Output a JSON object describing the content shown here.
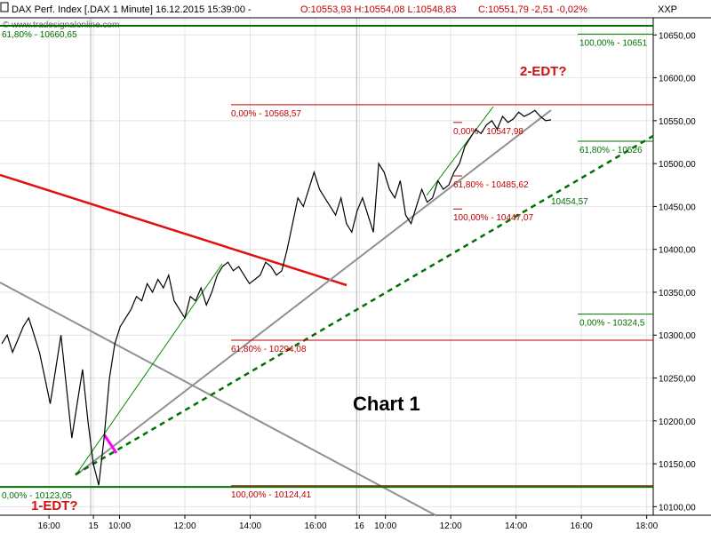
{
  "header": {
    "instrument": "DAX Perf. Index [.DAX  1 Minute] 16.12.2015 15:39:00 -",
    "ohlc": "O:10553,93 H:10554,08 L:10548,83",
    "change": "C:10551,79 -2,51 -0,02%",
    "scale_label": "XXP"
  },
  "watermark": "© www.tradesignalonline.com",
  "colors": {
    "price": "#000000",
    "fib_red": "#c00000",
    "fib_green": "#007000",
    "resistance": "#e01010",
    "channel": "#909090",
    "support_dotted": "#007000",
    "marker": "#ff00ff"
  },
  "chart_data": {
    "type": "line",
    "title": "Chart 1",
    "ylim": [
      10090,
      10670
    ],
    "yticks": [
      "10650,00",
      "10600,00",
      "10550,00",
      "10500,00",
      "10450,00",
      "10400,00",
      "10350,00",
      "10300,00",
      "10250,00",
      "10200,00",
      "10150,00",
      "10100,00"
    ],
    "ytick_values": [
      10650,
      10600,
      10550,
      10500,
      10450,
      10400,
      10350,
      10300,
      10250,
      10200,
      10150,
      10100
    ],
    "xticks": [
      "16:00",
      "15",
      "10:00",
      "12:00",
      "14:00",
      "16:00",
      "16",
      "10:00",
      "12:00",
      "14:00",
      "16:00",
      "18:00"
    ],
    "xtick_index": [
      0.075,
      0.143,
      0.183,
      0.283,
      0.383,
      0.483,
      0.55,
      0.59,
      0.69,
      0.79,
      0.89,
      0.99
    ],
    "series": [
      {
        "values": [
          10290,
          10300,
          10280,
          10295,
          10310,
          10320,
          10300,
          10280,
          10250,
          10220,
          10260,
          10300,
          10240,
          10180,
          10220,
          10260,
          10200,
          10150,
          10125,
          10180,
          10250,
          10290,
          10310,
          10320,
          10330,
          10345,
          10340,
          10360,
          10350,
          10365,
          10355,
          10370,
          10340,
          10330,
          10320,
          10345,
          10340,
          10355,
          10335,
          10350,
          10370,
          10380,
          10385,
          10375,
          10380,
          10370,
          10360,
          10365,
          10370,
          10385,
          10380,
          10370,
          10375,
          10400,
          10430,
          10460,
          10450,
          10470,
          10490,
          10470,
          10460,
          10450,
          10440,
          10460,
          10430,
          10420,
          10445,
          10460,
          10440,
          10420,
          10500,
          10490,
          10470,
          10460,
          10480,
          10440,
          10430,
          10450,
          10470,
          10455,
          10460,
          10480,
          10470,
          10475,
          10490,
          10500,
          10520,
          10530,
          10540,
          10535,
          10545,
          10550,
          10540,
          10555,
          10548,
          10552,
          10560,
          10555,
          10558,
          10562,
          10555,
          10550,
          10551
        ]
      }
    ],
    "fib_red": [
      {
        "label": "0,00% - 10568,57",
        "value": 10568.57
      },
      {
        "label": "61,80% - 10294,08",
        "value": 10294.08
      },
      {
        "label": "100,00% - 10124,41",
        "value": 10124.41
      }
    ],
    "fib_red_small": [
      {
        "label": "0,00% - 10547,98",
        "value": 10547.98
      },
      {
        "label": "61,80% - 10485,62",
        "value": 10485.62
      },
      {
        "label": "100,00% - 10447,07",
        "value": 10447.07
      }
    ],
    "fib_green": [
      {
        "label": "100,00% - 10651",
        "value": 10651
      },
      {
        "label": "61,80% - 10526",
        "value": 10526
      },
      {
        "label": "0,00% - 10324,5",
        "value": 10324.5
      },
      {
        "label": "61,80% - 10660,65",
        "value": 10660.65
      },
      {
        "label": "0,00% - 10123,05",
        "value": 10123.05
      }
    ],
    "support_label": "10454,57",
    "annotations": [
      {
        "text": "1-EDT?"
      },
      {
        "text": "2-EDT?"
      }
    ]
  }
}
